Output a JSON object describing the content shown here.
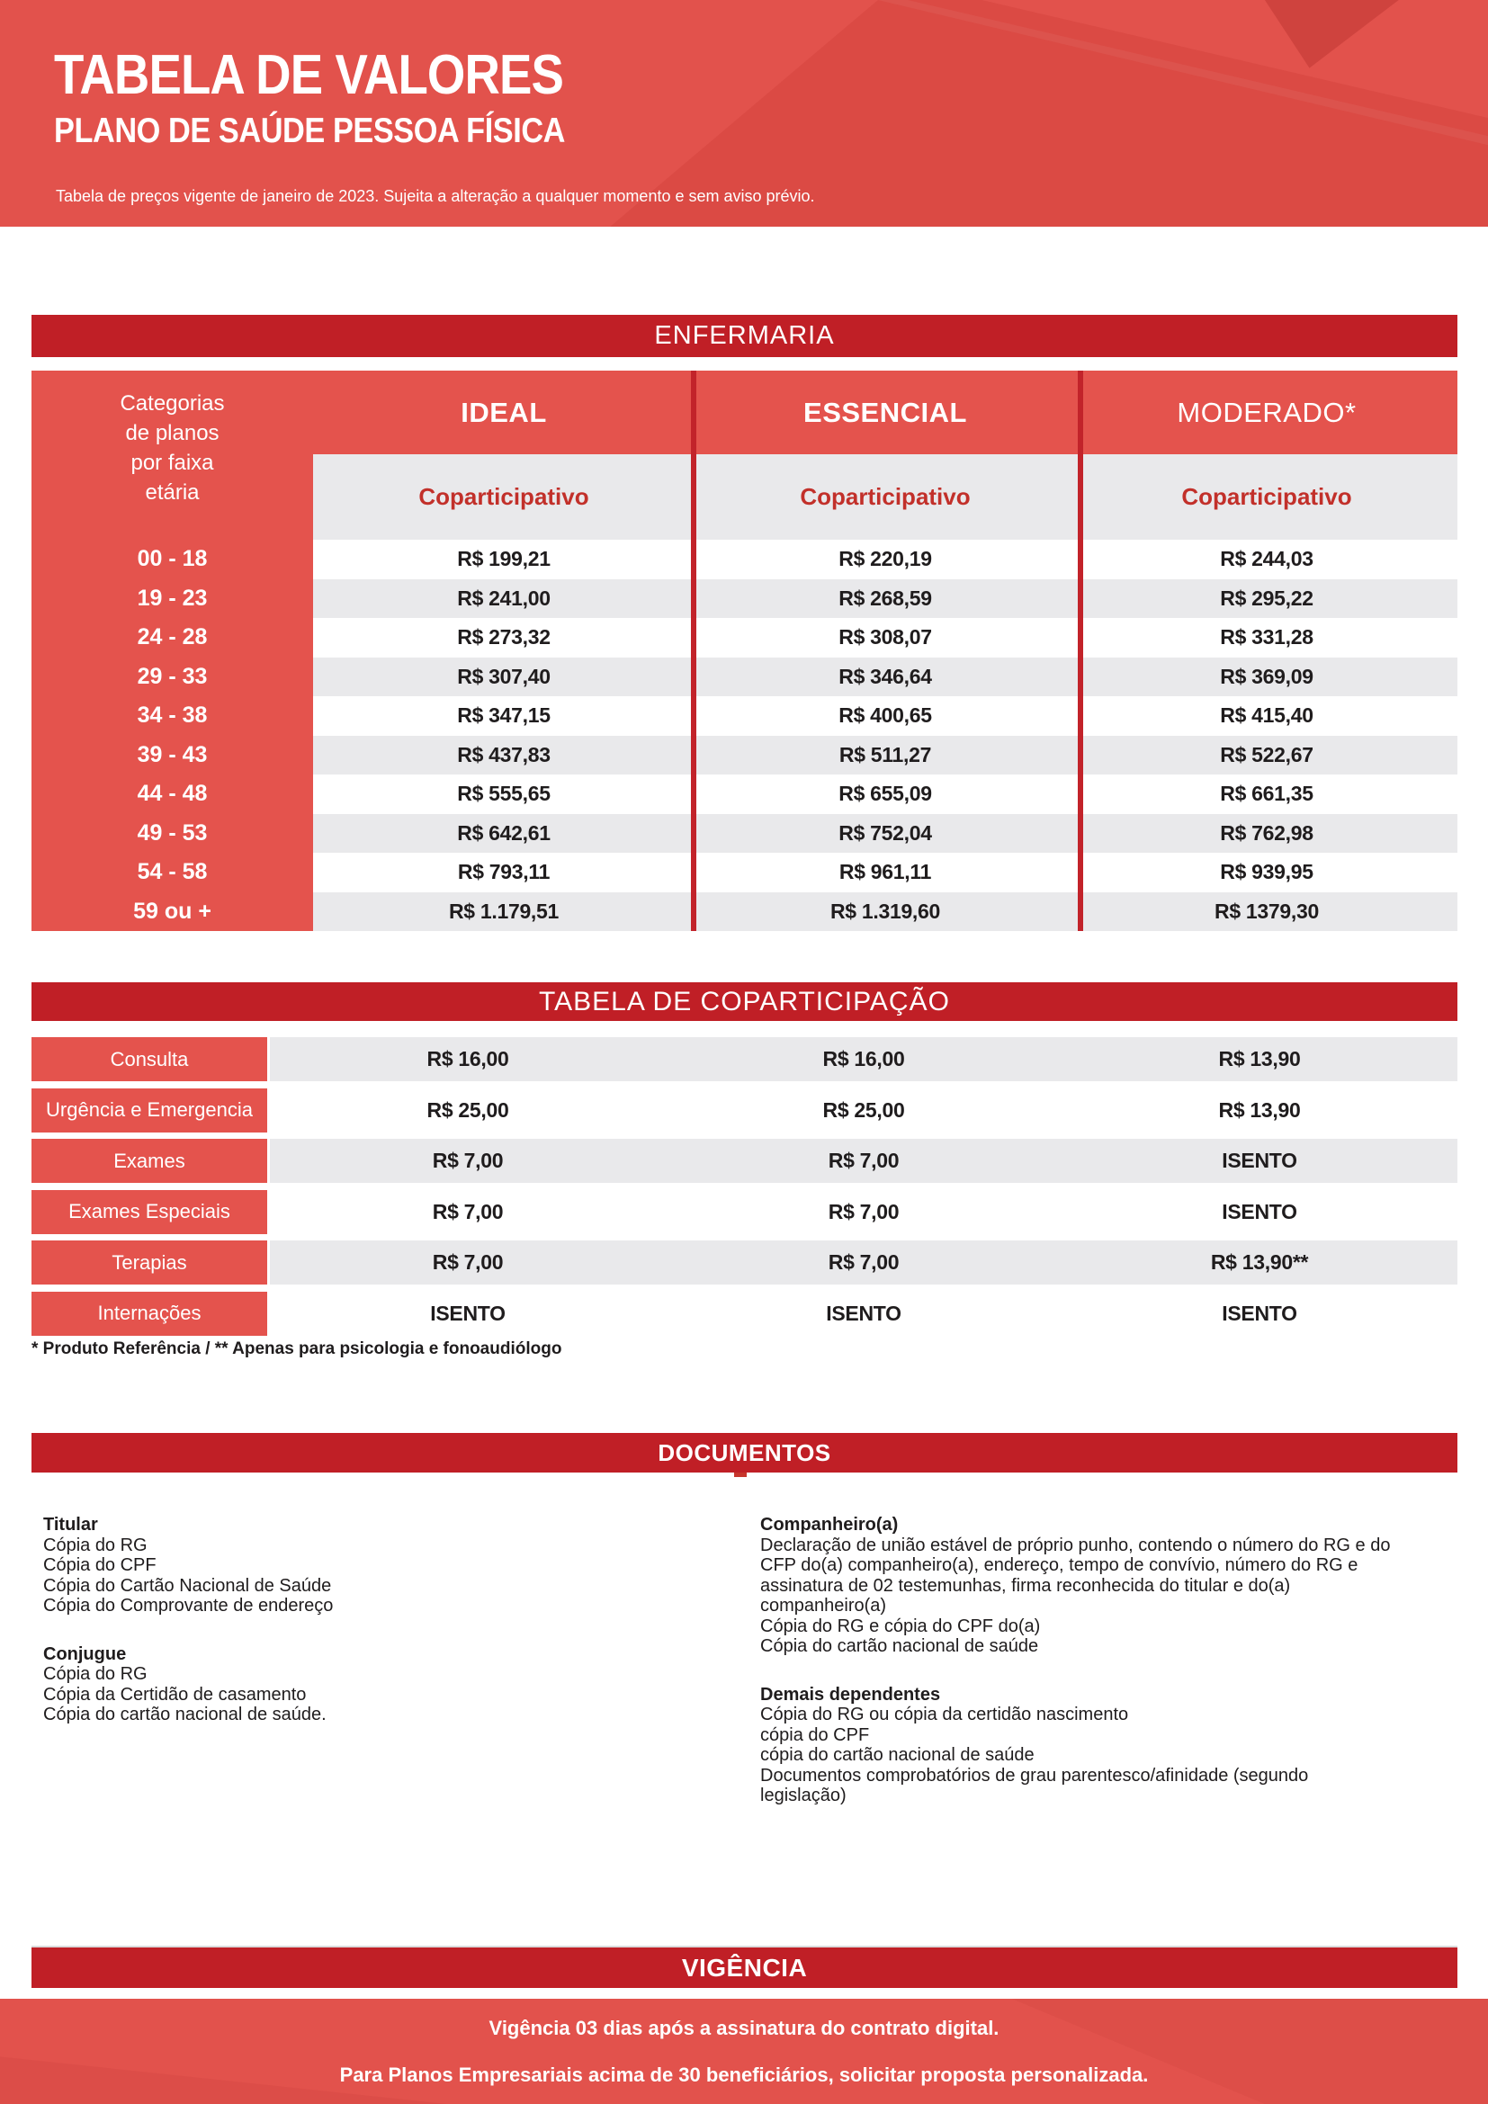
{
  "header": {
    "title": "TABELA DE VALORES",
    "subtitle": "PLANO DE SAÚDE PESSOA FÍSICA",
    "tagline": "Tabela de preços vigente de janeiro de 2023. Sujeita a alteração a qualquer momento e sem aviso prévio."
  },
  "colors": {
    "dark_red": "#c01f26",
    "light_red": "#e4534d",
    "divider_red": "#c2232a",
    "stripe_gray": "#e9e9eb",
    "accent_text_red": "#c2302a",
    "value_text": "#1f1c1d"
  },
  "price_table": {
    "section_title": "ENFERMARIA",
    "corner_label_lines": [
      "Categorias",
      "de planos",
      "por faixa",
      "etária"
    ],
    "columns": [
      {
        "name": "IDEAL",
        "sub": "Coparticipativo"
      },
      {
        "name": "ESSENCIAL",
        "sub": "Coparticipativo"
      },
      {
        "name": "MODERADO*",
        "sub": "Coparticipativo"
      }
    ],
    "rows": [
      {
        "age": "00 - 18",
        "ideal": "R$ 199,21",
        "essencial": "R$ 220,19",
        "moderado": "R$ 244,03"
      },
      {
        "age": "19 - 23",
        "ideal": "R$ 241,00",
        "essencial": "R$ 268,59",
        "moderado": "R$ 295,22"
      },
      {
        "age": "24 - 28",
        "ideal": "R$ 273,32",
        "essencial": "R$ 308,07",
        "moderado": "R$ 331,28"
      },
      {
        "age": "29 - 33",
        "ideal": "R$ 307,40",
        "essencial": "R$ 346,64",
        "moderado": "R$ 369,09"
      },
      {
        "age": "34 - 38",
        "ideal": "R$ 347,15",
        "essencial": "R$ 400,65",
        "moderado": "R$ 415,40"
      },
      {
        "age": "39 - 43",
        "ideal": "R$ 437,83",
        "essencial": "R$ 511,27",
        "moderado": "R$ 522,67"
      },
      {
        "age": "44 - 48",
        "ideal": "R$ 555,65",
        "essencial": "R$ 655,09",
        "moderado": "R$ 661,35"
      },
      {
        "age": "49 - 53",
        "ideal": "R$ 642,61",
        "essencial": "R$ 752,04",
        "moderado": "R$ 762,98"
      },
      {
        "age": "54 - 58",
        "ideal": "R$ 793,11",
        "essencial": "R$ 961,11",
        "moderado": "R$ 939,95"
      },
      {
        "age": "59 ou +",
        "ideal": "R$ 1.179,51",
        "essencial": "R$ 1.319,60",
        "moderado": "R$ 1379,30"
      }
    ]
  },
  "copart_table": {
    "section_title": "TABELA DE COPARTICIPAÇÃO",
    "rows": [
      {
        "label": "Consulta",
        "ideal": "R$ 16,00",
        "essencial": "R$ 16,00",
        "moderado": "R$ 13,90"
      },
      {
        "label": "Urgência e Emergencia",
        "ideal": "R$ 25,00",
        "essencial": "R$ 25,00",
        "moderado": "R$ 13,90"
      },
      {
        "label": "Exames",
        "ideal": "R$ 7,00",
        "essencial": "R$ 7,00",
        "moderado": "ISENTO"
      },
      {
        "label": "Exames Especiais",
        "ideal": "R$ 7,00",
        "essencial": "R$ 7,00",
        "moderado": "ISENTO"
      },
      {
        "label": "Terapias",
        "ideal": "R$ 7,00",
        "essencial": "R$ 7,00",
        "moderado": "R$ 13,90**"
      },
      {
        "label": "Internações",
        "ideal": "ISENTO",
        "essencial": "ISENTO",
        "moderado": "ISENTO"
      }
    ],
    "footnote": "* Produto Referência / ** Apenas para psicologia e fonoaudiólogo"
  },
  "documents": {
    "section_title": "DOCUMENTOS",
    "left": [
      {
        "heading": "Titular",
        "lines": [
          "Cópia do RG",
          "Cópia do CPF",
          "Cópia do Cartão Nacional de Saúde",
          "Cópia do Comprovante de endereço"
        ]
      },
      {
        "heading": "Conjugue",
        "lines": [
          "Cópia do RG",
          "Cópia da Certidão de casamento",
          "Cópia do cartão  nacional de saúde."
        ]
      }
    ],
    "right": [
      {
        "heading": "Companheiro(a)",
        "lines": [
          "Declaração de união estável de próprio punho, contendo o número do RG e do CFP do(a) companheiro(a), endereço, tempo de convívio, número do RG e assinatura de 02 testemunhas, firma reconhecida do titular e do(a) companheiro(a)",
          "Cópia do RG e cópia do CPF do(a)",
          "Cópia do cartão nacional de saúde"
        ]
      },
      {
        "heading": "Demais dependentes",
        "lines": [
          "Cópia do RG ou cópia da certidão nascimento",
          "cópia do CPF",
          "cópia do cartão nacional de saúde",
          "Documentos comprobatórios de grau parentesco/afinidade (segundo legislação)"
        ]
      }
    ]
  },
  "vigencia": {
    "section_title": "VIGÊNCIA",
    "lines": [
      "Vigência 03 dias após a assinatura do contrato digital.",
      "Para Planos Empresariais acima de 30 beneficiários, solicitar proposta personalizada."
    ]
  }
}
